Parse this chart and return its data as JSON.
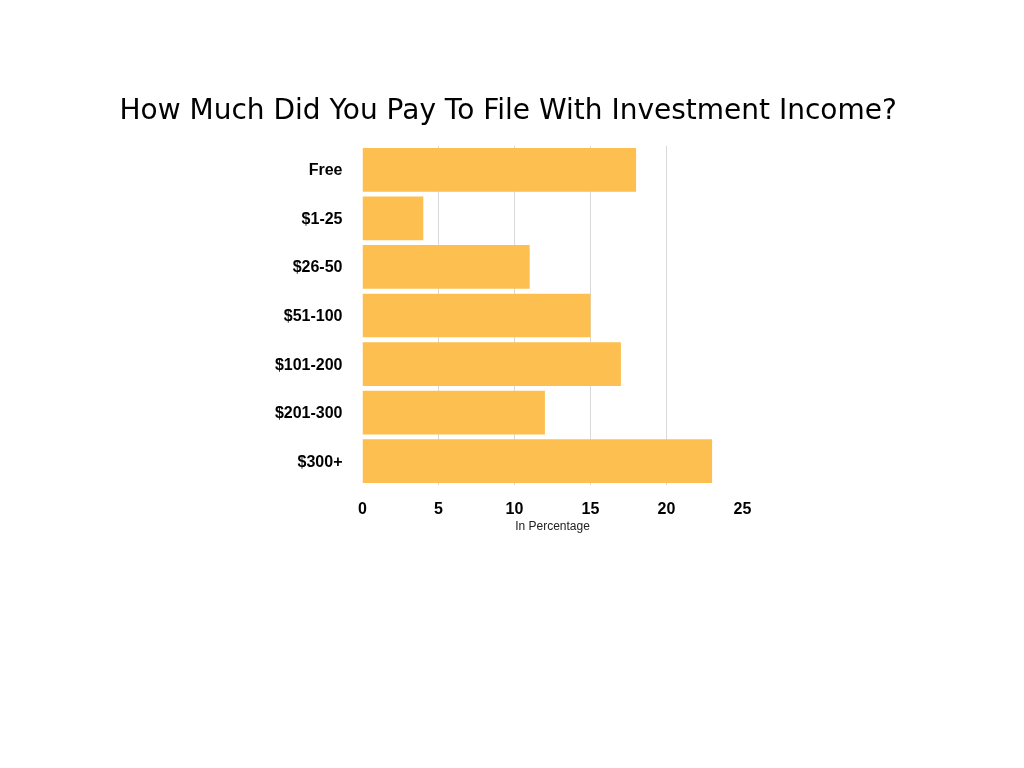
{
  "chart_data": {
    "type": "bar",
    "orientation": "horizontal",
    "title": "How Much Did You Pay To File With Investment Income?",
    "xlabel": "In Percentage",
    "categories": [
      "Free",
      "$1-25",
      "$26-50",
      "$51-100",
      "$101-200",
      "$201-300",
      "$300+"
    ],
    "values": [
      18,
      4,
      11,
      15,
      17,
      12,
      23
    ],
    "color": "#fdbf4f",
    "xlim": [
      0,
      25
    ],
    "xticks": [
      0,
      5,
      10,
      15,
      20,
      25
    ],
    "grid": "x"
  }
}
